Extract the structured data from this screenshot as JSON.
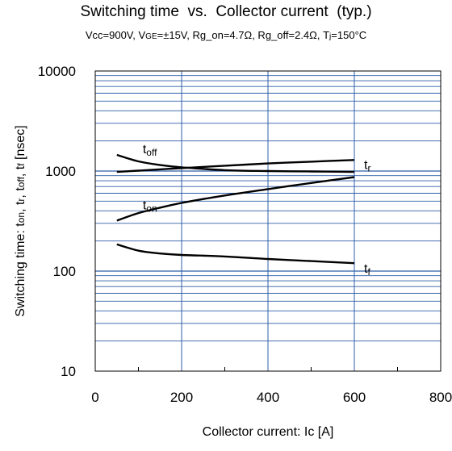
{
  "chart_data": {
    "type": "line",
    "title": "Switching time  vs.  Collector current  (typ.)",
    "subtitle_parts": [
      {
        "t": "Vcc=900V, V",
        "sub": false
      },
      {
        "t": "GE",
        "sub": true
      },
      {
        "t": "=±15V, Rg_on=4.7Ω, Rg_off=2.4Ω, T",
        "sub": false
      },
      {
        "t": "j",
        "sub": true
      },
      {
        "t": "=150°C",
        "sub": false
      }
    ],
    "xlabel": "Collector current: Ic [A]",
    "ylabel_parts": [
      {
        "t": "Switching time: t",
        "sub": false
      },
      {
        "t": "on",
        "sub": true
      },
      {
        "t": ", t",
        "sub": false
      },
      {
        "t": "r",
        "sub": true
      },
      {
        "t": ", t",
        "sub": false
      },
      {
        "t": "off",
        "sub": true
      },
      {
        "t": ", t",
        "sub": false
      },
      {
        "t": "f",
        "sub": true
      },
      {
        "t": " [nsec]",
        "sub": false
      }
    ],
    "xlim": [
      0,
      800
    ],
    "ylim": [
      10,
      10000
    ],
    "yscale": "log",
    "x_ticks": [
      0,
      200,
      400,
      600,
      800
    ],
    "x_tick_labels": [
      "0",
      "200",
      "400",
      "600",
      "800"
    ],
    "y_ticks": [
      10,
      100,
      1000,
      10000
    ],
    "y_tick_labels": [
      "10",
      "100",
      "1000",
      "10000"
    ],
    "grid": true,
    "colors": {
      "grid": "#2e5ea8",
      "line": "#000000"
    },
    "series": [
      {
        "main": "t",
        "sub": "off",
        "x": [
          50,
          100,
          150,
          200,
          300,
          400,
          500,
          600
        ],
        "y": [
          1450,
          1250,
          1150,
          1090,
          1020,
          1000,
          990,
          980
        ]
      },
      {
        "main": "t",
        "sub": "on",
        "x": [
          50,
          100,
          150,
          200,
          300,
          400,
          500,
          600
        ],
        "y": [
          980,
          1010,
          1040,
          1070,
          1130,
          1190,
          1240,
          1290
        ]
      },
      {
        "main": "t",
        "sub": "r",
        "x": [
          50,
          100,
          150,
          200,
          300,
          400,
          500,
          600
        ],
        "y": [
          320,
          380,
          430,
          480,
          570,
          660,
          760,
          870
        ]
      },
      {
        "main": "t",
        "sub": "f",
        "x": [
          50,
          100,
          150,
          200,
          300,
          400,
          500,
          600
        ],
        "y": [
          185,
          160,
          150,
          145,
          140,
          132,
          126,
          120
        ]
      }
    ]
  }
}
